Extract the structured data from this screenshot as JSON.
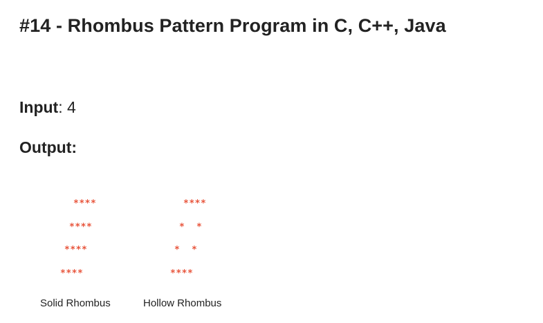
{
  "title": "#14 - Rhombus Pattern Program in C, C++, Java",
  "input": {
    "label": "Input",
    "separator": ":",
    "value": " 4"
  },
  "output": {
    "label": "Output:"
  },
  "patterns": {
    "solid": {
      "rows": [
        "****",
        "****",
        "****",
        "****"
      ],
      "caption": "Solid Rhombus"
    },
    "hollow": {
      "rows": [
        "****",
        "*  *",
        "*  *",
        "****"
      ],
      "caption": "Hollow Rhombus"
    }
  },
  "colors": {
    "star": "#e8543b",
    "text": "#222222",
    "background": "#ffffff"
  }
}
